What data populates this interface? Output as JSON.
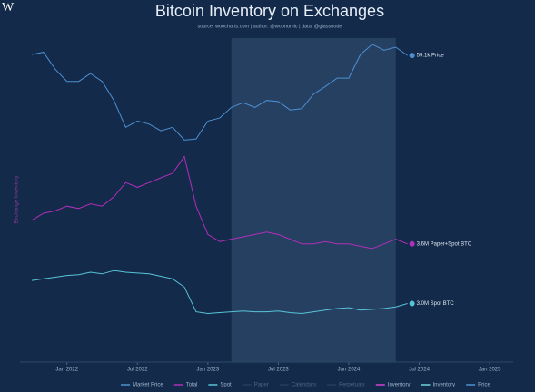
{
  "chart_data": {
    "type": "line",
    "title": "Bitcoin Inventory on Exchanges",
    "subtitle": "source: woocharts.com | author: @woonomic | data: @glassnode",
    "logo": "W",
    "y_axis_label": "Exchange Inventory",
    "x": [
      "2021-10",
      "2021-11",
      "2021-12",
      "2022-01",
      "2022-02",
      "2022-03",
      "2022-04",
      "2022-05",
      "2022-06",
      "2022-07",
      "2022-08",
      "2022-09",
      "2022-10",
      "2022-11",
      "2022-12",
      "2023-01",
      "2023-02",
      "2023-03",
      "2023-04",
      "2023-05",
      "2023-06",
      "2023-07",
      "2023-08",
      "2023-09",
      "2023-10",
      "2023-11",
      "2023-12",
      "2024-01",
      "2024-02",
      "2024-03",
      "2024-04",
      "2024-05",
      "2024-06"
    ],
    "xlim": [
      "2021-09",
      "2025-03"
    ],
    "xticks": [
      {
        "value": "2022-01",
        "label": "Jan 2022"
      },
      {
        "value": "2022-07",
        "label": "Jul 2022"
      },
      {
        "value": "2023-01",
        "label": "Jan 2023"
      },
      {
        "value": "2023-07",
        "label": "Jul 2023"
      },
      {
        "value": "2024-01",
        "label": "Jan 2024"
      },
      {
        "value": "2024-07",
        "label": "Jul 2024"
      },
      {
        "value": "2025-01",
        "label": "Jan 2025"
      }
    ],
    "highlight": [
      "2023-03",
      "2024-05"
    ],
    "series": [
      {
        "name": "Market Price",
        "color": "#4d8fd0",
        "scale": "log",
        "ylim": [
          10,
          80
        ],
        "end_label": "59.1k Price",
        "values": [
          60,
          62,
          48,
          40,
          40,
          45,
          40,
          30,
          20,
          22,
          21,
          19,
          20,
          16.5,
          16.8,
          22,
          23,
          27,
          29,
          27,
          30,
          29.5,
          26,
          26.5,
          33,
          37,
          42,
          42,
          60,
          70,
          64,
          67,
          59.1
        ]
      },
      {
        "name": "Total",
        "color": "#b02fb8",
        "scale": "linear",
        "ylim": [
          3.0,
          5.5
        ],
        "end_label": "3.6M Paper+Spot BTC",
        "values": [
          4.1,
          4.25,
          4.3,
          4.4,
          4.35,
          4.45,
          4.4,
          4.6,
          4.9,
          4.8,
          4.9,
          5.0,
          5.1,
          5.45,
          4.4,
          3.8,
          3.65,
          3.7,
          3.75,
          3.8,
          3.85,
          3.8,
          3.7,
          3.6,
          3.6,
          3.65,
          3.6,
          3.6,
          3.55,
          3.5,
          3.6,
          3.7,
          3.6
        ]
      },
      {
        "name": "Spot",
        "color": "#58c4d6",
        "scale": "linear",
        "ylim": [
          2.5,
          3.6
        ],
        "end_label": "3.0M Spot BTC",
        "values": [
          3.28,
          3.3,
          3.32,
          3.34,
          3.35,
          3.38,
          3.36,
          3.4,
          3.38,
          3.37,
          3.36,
          3.33,
          3.3,
          3.2,
          2.9,
          2.88,
          2.89,
          2.9,
          2.91,
          2.9,
          2.9,
          2.91,
          2.89,
          2.88,
          2.9,
          2.92,
          2.94,
          2.95,
          2.92,
          2.93,
          2.94,
          2.96,
          3.0
        ]
      }
    ],
    "legend": [
      {
        "name": "Market Price",
        "color": "#4d8fd0",
        "active": true
      },
      {
        "name": "Total",
        "color": "#b02fb8",
        "active": true
      },
      {
        "name": "Spot",
        "color": "#58c4d6",
        "active": true
      },
      {
        "name": "Paper",
        "color": "#3a5272",
        "active": false
      },
      {
        "name": "Calendars",
        "color": "#3a5272",
        "active": false
      },
      {
        "name": "Perpetuals",
        "color": "#3a5272",
        "active": false
      },
      {
        "name": "Inventory",
        "color": "#d63fd0",
        "active": true
      },
      {
        "name": "Inventory",
        "color": "#6fd3e0",
        "active": true
      },
      {
        "name": "Price",
        "color": "#4d8fd0",
        "active": true
      }
    ]
  }
}
